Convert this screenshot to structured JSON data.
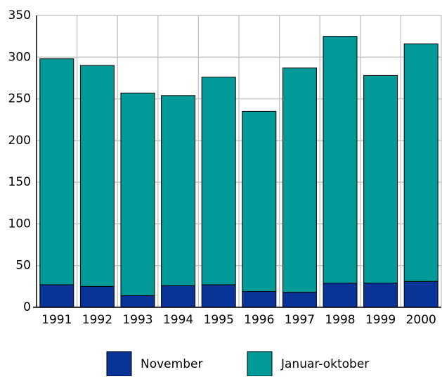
{
  "chart_data": {
    "type": "stacked_bar",
    "categories": [
      "1991",
      "1992",
      "1993",
      "1994",
      "1995",
      "1996",
      "1997",
      "1998",
      "1999",
      "2000"
    ],
    "series": [
      {
        "name": "November",
        "color": "#0a3397",
        "values": [
          27,
          25,
          14,
          26,
          27,
          19,
          18,
          29,
          29,
          31
        ]
      },
      {
        "name": "Januar-oktober",
        "color": "#009a99",
        "values": [
          271,
          265,
          243,
          228,
          249,
          216,
          269,
          296,
          249,
          285
        ]
      }
    ],
    "ylim": [
      0,
      350
    ],
    "yticks": [
      0,
      50,
      100,
      150,
      200,
      250,
      300,
      350
    ],
    "grid": true
  }
}
